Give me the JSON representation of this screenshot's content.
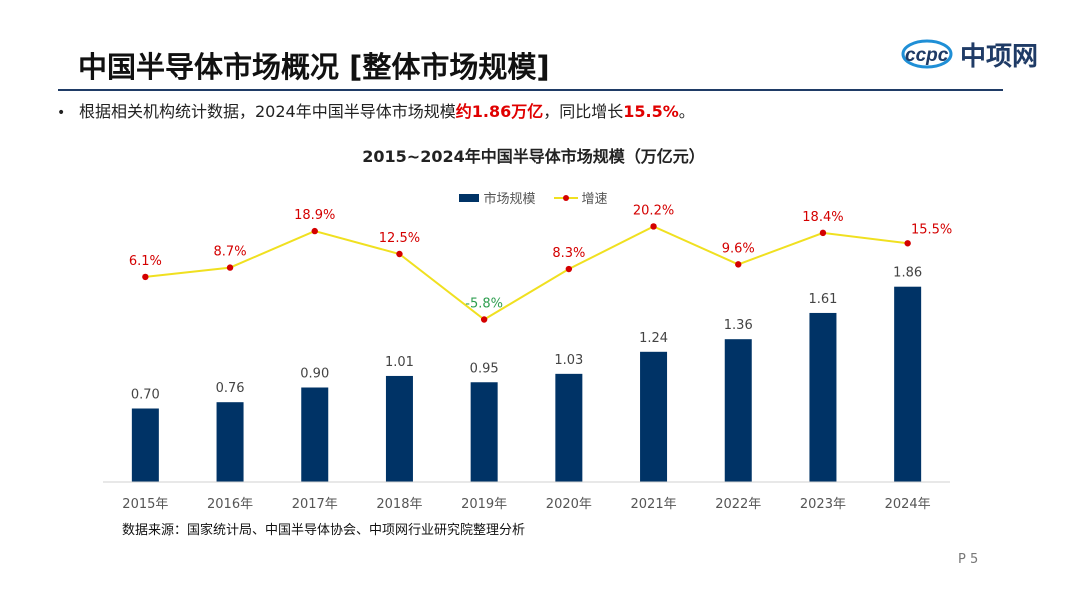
{
  "page": {
    "title": "中国半导体市场概况 [整体市场规模]",
    "logo_text": "中项网",
    "bullet_marker": "•",
    "bullet_prefix": "根据相关机构统计数据，2024年中国半导体市场规模",
    "bullet_highlight_1": "约1.86万亿",
    "bullet_mid": "，同比增长",
    "bullet_highlight_2": "15.5%",
    "bullet_suffix": "。",
    "source": "数据来源：国家统计局、中国半导体协会、中项网行业研究院整理分析",
    "page_number": "P 5"
  },
  "colors": {
    "bar": "#003366",
    "line": "#f0e020",
    "point": "#d40000",
    "positive_label": "#d40000",
    "negative_label": "#2e9e4f",
    "accent_rule": "#1f3b66"
  },
  "chart_data": {
    "type": "bar",
    "title": "2015~2024年中国半导体市场规模（万亿元）",
    "categories": [
      "2015年",
      "2016年",
      "2017年",
      "2018年",
      "2019年",
      "2020年",
      "2021年",
      "2022年",
      "2023年",
      "2024年"
    ],
    "series": [
      {
        "name": "市场规模",
        "kind": "bar",
        "values": [
          0.7,
          0.76,
          0.9,
          1.01,
          0.95,
          1.03,
          1.24,
          1.36,
          1.61,
          1.86
        ],
        "labels": [
          "0.70",
          "0.76",
          "0.90",
          "1.01",
          "0.95",
          "1.03",
          "1.24",
          "1.36",
          "1.61",
          "1.86"
        ]
      },
      {
        "name": "增速",
        "kind": "line",
        "values": [
          6.1,
          8.7,
          18.9,
          12.5,
          -5.8,
          8.3,
          20.2,
          9.6,
          18.4,
          15.5
        ],
        "labels": [
          "6.1%",
          "8.7%",
          "18.9%",
          "12.5%",
          "-5.8%",
          "8.3%",
          "20.2%",
          "9.6%",
          "18.4%",
          "15.5%"
        ]
      }
    ],
    "bar_ylim": [
      0,
      2.0
    ],
    "line_ylim": [
      -6.5,
      22
    ],
    "legend": "top-center",
    "grid": false
  }
}
